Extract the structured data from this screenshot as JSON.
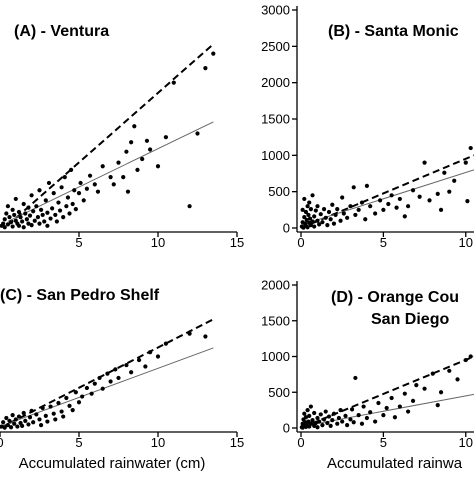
{
  "chart_data": [
    {
      "type": "scatter",
      "panel": "A",
      "title": "(A) - Ventura",
      "title_lines": [
        "(A) - Ventura"
      ],
      "xlabel": "",
      "ylabel": "",
      "xlim": [
        0,
        15
      ],
      "ylim": [
        0,
        3000
      ],
      "x_ticks": [
        5,
        10,
        15
      ],
      "y_ticks": [],
      "trend_lines": [
        {
          "style": "dashed",
          "x": [
            0.5,
            13.5
          ],
          "y": [
            40,
            2530
          ]
        },
        {
          "style": "solid",
          "x": [
            0.5,
            13.5
          ],
          "y": [
            90,
            1460
          ]
        }
      ],
      "points": [
        [
          0.1,
          30
        ],
        [
          0.2,
          60
        ],
        [
          0.3,
          10
        ],
        [
          0.3,
          120
        ],
        [
          0.4,
          200
        ],
        [
          0.5,
          50
        ],
        [
          0.5,
          300
        ],
        [
          0.6,
          150
        ],
        [
          0.7,
          80
        ],
        [
          0.8,
          250
        ],
        [
          0.8,
          20
        ],
        [
          0.9,
          180
        ],
        [
          1.0,
          100
        ],
        [
          1.0,
          400
        ],
        [
          1.1,
          60
        ],
        [
          1.2,
          220
        ],
        [
          1.2,
          30
        ],
        [
          1.3,
          150
        ],
        [
          1.4,
          90
        ],
        [
          1.5,
          330
        ],
        [
          1.5,
          10
        ],
        [
          1.6,
          200
        ],
        [
          1.7,
          120
        ],
        [
          1.8,
          60
        ],
        [
          1.8,
          280
        ],
        [
          1.9,
          170
        ],
        [
          2.0,
          40
        ],
        [
          2.0,
          450
        ],
        [
          2.1,
          230
        ],
        [
          2.2,
          100
        ],
        [
          2.3,
          300
        ],
        [
          2.4,
          150
        ],
        [
          2.5,
          60
        ],
        [
          2.5,
          520
        ],
        [
          2.6,
          250
        ],
        [
          2.7,
          180
        ],
        [
          2.8,
          90
        ],
        [
          2.9,
          380
        ],
        [
          3.0,
          210
        ],
        [
          3.0,
          30
        ],
        [
          3.1,
          620
        ],
        [
          3.2,
          130
        ],
        [
          3.3,
          270
        ],
        [
          3.4,
          480
        ],
        [
          3.5,
          180
        ],
        [
          3.6,
          90
        ],
        [
          3.7,
          350
        ],
        [
          3.8,
          240
        ],
        [
          3.9,
          560
        ],
        [
          4.0,
          150
        ],
        [
          4.1,
          700
        ],
        [
          4.2,
          300
        ],
        [
          4.3,
          420
        ],
        [
          4.4,
          200
        ],
        [
          4.5,
          800
        ],
        [
          4.6,
          330
        ],
        [
          4.7,
          520
        ],
        [
          4.8,
          260
        ],
        [
          5.0,
          480
        ],
        [
          5.1,
          620
        ],
        [
          5.3,
          380
        ],
        [
          5.5,
          540
        ],
        [
          5.7,
          720
        ],
        [
          6.0,
          600
        ],
        [
          6.2,
          500
        ],
        [
          6.5,
          850
        ],
        [
          7.0,
          700
        ],
        [
          7.2,
          600
        ],
        [
          7.5,
          900
        ],
        [
          7.8,
          700
        ],
        [
          8.0,
          1050
        ],
        [
          8.1,
          500
        ],
        [
          8.3,
          1180
        ],
        [
          8.5,
          1400
        ],
        [
          8.7,
          800
        ],
        [
          9.0,
          950
        ],
        [
          9.3,
          1200
        ],
        [
          9.5,
          1080
        ],
        [
          10.0,
          850
        ],
        [
          10.5,
          1250
        ],
        [
          11.0,
          2000
        ],
        [
          12.0,
          300
        ],
        [
          12.5,
          1300
        ],
        [
          13.0,
          2200
        ],
        [
          13.5,
          2400
        ]
      ]
    },
    {
      "type": "scatter",
      "panel": "B",
      "title": "(B) - Santa Monica",
      "title_lines": [
        "(B) - Santa Monic"
      ],
      "xlabel": "",
      "ylabel": "",
      "xlim": [
        0,
        10.5
      ],
      "ylim": [
        0,
        3000
      ],
      "x_ticks": [
        0,
        5,
        10
      ],
      "y_ticks": [
        0,
        500,
        1000,
        1500,
        2000,
        2500,
        3000
      ],
      "trend_lines": [
        {
          "style": "dashed",
          "x": [
            0.0,
            10.5
          ],
          "y": [
            0,
            1000
          ]
        },
        {
          "style": "solid",
          "x": [
            0.0,
            10.5
          ],
          "y": [
            40,
            800
          ]
        }
      ],
      "points": [
        [
          0.05,
          20
        ],
        [
          0.1,
          80
        ],
        [
          0.1,
          250
        ],
        [
          0.15,
          5
        ],
        [
          0.2,
          150
        ],
        [
          0.2,
          400
        ],
        [
          0.25,
          60
        ],
        [
          0.3,
          220
        ],
        [
          0.3,
          30
        ],
        [
          0.35,
          110
        ],
        [
          0.4,
          300
        ],
        [
          0.4,
          10
        ],
        [
          0.45,
          180
        ],
        [
          0.5,
          70
        ],
        [
          0.5,
          350
        ],
        [
          0.55,
          130
        ],
        [
          0.6,
          40
        ],
        [
          0.6,
          260
        ],
        [
          0.7,
          90
        ],
        [
          0.7,
          450
        ],
        [
          0.8,
          160
        ],
        [
          0.8,
          20
        ],
        [
          0.9,
          240
        ],
        [
          1.0,
          100
        ],
        [
          1.0,
          300
        ],
        [
          1.1,
          50
        ],
        [
          1.2,
          190
        ],
        [
          1.3,
          80
        ],
        [
          1.4,
          260
        ],
        [
          1.5,
          140
        ],
        [
          1.6,
          40
        ],
        [
          1.7,
          220
        ],
        [
          1.8,
          120
        ],
        [
          1.9,
          320
        ],
        [
          2.0,
          60
        ],
        [
          2.1,
          180
        ],
        [
          2.2,
          260
        ],
        [
          2.4,
          100
        ],
        [
          2.5,
          420
        ],
        [
          2.6,
          200
        ],
        [
          2.8,
          140
        ],
        [
          3.0,
          300
        ],
        [
          3.2,
          560
        ],
        [
          3.3,
          180
        ],
        [
          3.5,
          250
        ],
        [
          3.7,
          350
        ],
        [
          3.9,
          120
        ],
        [
          4.0,
          580
        ],
        [
          4.2,
          300
        ],
        [
          4.5,
          200
        ],
        [
          4.8,
          380
        ],
        [
          5.0,
          250
        ],
        [
          5.3,
          330
        ],
        [
          5.5,
          450
        ],
        [
          5.8,
          280
        ],
        [
          6.0,
          400
        ],
        [
          6.3,
          160
        ],
        [
          6.5,
          300
        ],
        [
          6.8,
          520
        ],
        [
          7.2,
          430
        ],
        [
          7.5,
          900
        ],
        [
          7.8,
          380
        ],
        [
          8.3,
          470
        ],
        [
          8.5,
          250
        ],
        [
          8.7,
          760
        ],
        [
          9.0,
          500
        ],
        [
          9.3,
          650
        ],
        [
          10.0,
          900
        ],
        [
          10.1,
          370
        ],
        [
          10.3,
          1100
        ]
      ]
    },
    {
      "type": "scatter",
      "panel": "C",
      "title": "(C) - San Pedro Shelf",
      "title_lines": [
        "(C) - San Pedro Shelf"
      ],
      "xlabel": "Accumulated rainwater (cm)",
      "ylabel": "",
      "xlim": [
        0,
        15
      ],
      "ylim": [
        0,
        2000
      ],
      "x_ticks": [
        0,
        5,
        10,
        15
      ],
      "y_ticks": [],
      "trend_lines": [
        {
          "style": "dashed",
          "x": [
            0.0,
            13.5
          ],
          "y": [
            0,
            1520
          ]
        },
        {
          "style": "solid",
          "x": [
            0.0,
            13.5
          ],
          "y": [
            20,
            1120
          ]
        }
      ],
      "points": [
        [
          0.1,
          20
        ],
        [
          0.2,
          80
        ],
        [
          0.3,
          5
        ],
        [
          0.4,
          140
        ],
        [
          0.5,
          40
        ],
        [
          0.6,
          100
        ],
        [
          0.7,
          10
        ],
        [
          0.8,
          180
        ],
        [
          0.9,
          60
        ],
        [
          1.0,
          120
        ],
        [
          1.1,
          20
        ],
        [
          1.2,
          160
        ],
        [
          1.3,
          70
        ],
        [
          1.4,
          30
        ],
        [
          1.5,
          210
        ],
        [
          1.6,
          100
        ],
        [
          1.8,
          50
        ],
        [
          1.9,
          150
        ],
        [
          2.0,
          240
        ],
        [
          2.1,
          80
        ],
        [
          2.3,
          190
        ],
        [
          2.5,
          120
        ],
        [
          2.6,
          40
        ],
        [
          2.7,
          280
        ],
        [
          2.9,
          170
        ],
        [
          3.0,
          90
        ],
        [
          3.2,
          300
        ],
        [
          3.4,
          200
        ],
        [
          3.5,
          120
        ],
        [
          3.7,
          350
        ],
        [
          3.9,
          230
        ],
        [
          4.0,
          160
        ],
        [
          4.2,
          420
        ],
        [
          4.4,
          310
        ],
        [
          4.6,
          250
        ],
        [
          4.8,
          500
        ],
        [
          5.0,
          360
        ],
        [
          5.2,
          440
        ],
        [
          5.5,
          560
        ],
        [
          5.8,
          480
        ],
        [
          6.0,
          620
        ],
        [
          6.3,
          700
        ],
        [
          6.5,
          550
        ],
        [
          6.8,
          760
        ],
        [
          7.0,
          650
        ],
        [
          7.3,
          820
        ],
        [
          7.5,
          700
        ],
        [
          8.0,
          880
        ],
        [
          8.3,
          780
        ],
        [
          8.8,
          950
        ],
        [
          9.2,
          860
        ],
        [
          9.5,
          1060
        ],
        [
          10.0,
          1000
        ],
        [
          10.5,
          1180
        ],
        [
          12.0,
          1320
        ],
        [
          13.0,
          1280
        ]
      ]
    },
    {
      "type": "scatter",
      "panel": "D",
      "title": "(D) - Orange County / San Diego",
      "title_lines": [
        "(D) - Orange Cou",
        "San Diego"
      ],
      "xlabel": "Accumulated rainwa",
      "ylabel": "",
      "xlim": [
        0,
        10.5
      ],
      "ylim": [
        0,
        2000
      ],
      "x_ticks": [
        0,
        5,
        10
      ],
      "y_ticks": [
        0,
        500,
        1000,
        1500,
        2000
      ],
      "trend_lines": [
        {
          "style": "dashed",
          "x": [
            0.0,
            10.5
          ],
          "y": [
            0,
            1000
          ]
        },
        {
          "style": "solid",
          "x": [
            0.0,
            10.5
          ],
          "y": [
            20,
            470
          ]
        }
      ],
      "points": [
        [
          0.05,
          10
        ],
        [
          0.1,
          60
        ],
        [
          0.1,
          5
        ],
        [
          0.15,
          120
        ],
        [
          0.2,
          30
        ],
        [
          0.2,
          200
        ],
        [
          0.25,
          80
        ],
        [
          0.3,
          15
        ],
        [
          0.3,
          150
        ],
        [
          0.35,
          50
        ],
        [
          0.4,
          250
        ],
        [
          0.45,
          90
        ],
        [
          0.5,
          20
        ],
        [
          0.5,
          170
        ],
        [
          0.6,
          60
        ],
        [
          0.6,
          300
        ],
        [
          0.7,
          110
        ],
        [
          0.8,
          30
        ],
        [
          0.8,
          210
        ],
        [
          0.9,
          70
        ],
        [
          1.0,
          140
        ],
        [
          1.0,
          10
        ],
        [
          1.1,
          90
        ],
        [
          1.2,
          190
        ],
        [
          1.3,
          40
        ],
        [
          1.4,
          120
        ],
        [
          1.5,
          230
        ],
        [
          1.6,
          70
        ],
        [
          1.7,
          160
        ],
        [
          1.8,
          30
        ],
        [
          1.9,
          110
        ],
        [
          2.0,
          200
        ],
        [
          2.2,
          60
        ],
        [
          2.3,
          140
        ],
        [
          2.4,
          250
        ],
        [
          2.5,
          90
        ],
        [
          2.7,
          170
        ],
        [
          2.8,
          40
        ],
        [
          3.0,
          120
        ],
        [
          3.1,
          260
        ],
        [
          3.2,
          80
        ],
        [
          3.3,
          700
        ],
        [
          3.5,
          180
        ],
        [
          3.7,
          60
        ],
        [
          3.8,
          300
        ],
        [
          4.0,
          140
        ],
        [
          4.2,
          220
        ],
        [
          4.5,
          90
        ],
        [
          4.7,
          350
        ],
        [
          5.0,
          180
        ],
        [
          5.2,
          280
        ],
        [
          5.5,
          420
        ],
        [
          5.7,
          150
        ],
        [
          6.0,
          300
        ],
        [
          6.3,
          480
        ],
        [
          6.5,
          230
        ],
        [
          6.8,
          380
        ],
        [
          7.0,
          600
        ],
        [
          7.5,
          550
        ],
        [
          8.0,
          760
        ],
        [
          8.3,
          320
        ],
        [
          8.5,
          500
        ],
        [
          9.0,
          800
        ],
        [
          9.5,
          680
        ],
        [
          10.0,
          950
        ],
        [
          10.3,
          1000
        ]
      ]
    }
  ]
}
